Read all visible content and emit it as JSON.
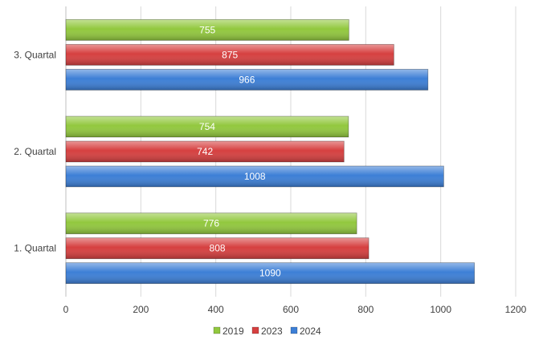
{
  "chart_data": {
    "type": "bar",
    "orientation": "horizontal",
    "categories": [
      "1. Quartal",
      "2. Quartal",
      "3. Quartal"
    ],
    "series": [
      {
        "name": "2019",
        "values": [
          776,
          754,
          755
        ],
        "color": "#92c83e"
      },
      {
        "name": "2023",
        "values": [
          808,
          742,
          875
        ],
        "color": "#d64040"
      },
      {
        "name": "2024",
        "values": [
          1090,
          1008,
          966
        ],
        "color": "#3d7fd6"
      }
    ],
    "xlim": [
      0,
      1200
    ],
    "xticks": [
      0,
      200,
      400,
      600,
      800,
      1000,
      1200
    ],
    "grid": true,
    "legend": "bottom",
    "data_labels": true
  }
}
